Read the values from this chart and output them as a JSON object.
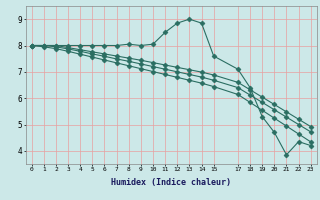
{
  "xlabel": "Humidex (Indice chaleur)",
  "bg_color": "#cce8e8",
  "line_color": "#2a6e62",
  "grid_color": "#e8a0a0",
  "xlim": [
    -0.5,
    23.5
  ],
  "ylim": [
    3.5,
    9.5
  ],
  "yticks": [
    4,
    5,
    6,
    7,
    8,
    9
  ],
  "xticks": [
    0,
    1,
    2,
    3,
    4,
    5,
    6,
    7,
    8,
    9,
    10,
    11,
    12,
    13,
    14,
    15,
    17,
    18,
    19,
    20,
    21,
    22,
    23
  ],
  "line1_x": [
    0,
    1,
    2,
    3,
    4,
    5,
    6,
    7,
    8,
    9,
    10,
    11,
    12,
    13,
    14,
    15,
    17,
    18,
    19,
    20,
    21,
    22,
    23
  ],
  "line1_y": [
    8.0,
    8.0,
    8.0,
    8.0,
    8.0,
    8.0,
    8.0,
    8.0,
    8.05,
    8.0,
    8.05,
    8.5,
    8.85,
    9.0,
    8.85,
    7.6,
    7.1,
    6.4,
    5.3,
    4.7,
    3.85,
    4.35,
    4.2
  ],
  "line2_x": [
    0,
    1,
    2,
    3,
    4,
    5,
    6,
    7,
    8,
    9,
    10,
    11,
    12,
    13,
    14,
    15,
    17,
    18,
    19,
    20,
    21,
    22,
    23
  ],
  "line2_y": [
    8.0,
    8.0,
    8.0,
    7.92,
    7.84,
    7.76,
    7.68,
    7.6,
    7.52,
    7.44,
    7.35,
    7.26,
    7.17,
    7.08,
    6.99,
    6.88,
    6.6,
    6.32,
    6.04,
    5.76,
    5.48,
    5.2,
    4.92
  ],
  "line3_x": [
    0,
    1,
    2,
    3,
    4,
    5,
    6,
    7,
    8,
    9,
    10,
    11,
    12,
    13,
    14,
    15,
    17,
    18,
    19,
    20,
    21,
    22,
    23
  ],
  "line3_y": [
    8.0,
    8.0,
    7.95,
    7.87,
    7.78,
    7.68,
    7.59,
    7.49,
    7.4,
    7.3,
    7.2,
    7.1,
    7.0,
    6.9,
    6.8,
    6.68,
    6.4,
    6.12,
    5.84,
    5.56,
    5.28,
    5.0,
    4.72
  ],
  "line4_x": [
    0,
    1,
    2,
    3,
    4,
    5,
    6,
    7,
    8,
    9,
    10,
    11,
    12,
    13,
    14,
    15,
    17,
    18,
    19,
    20,
    21,
    22,
    23
  ],
  "line4_y": [
    8.0,
    7.95,
    7.88,
    7.78,
    7.67,
    7.56,
    7.45,
    7.34,
    7.23,
    7.12,
    7.01,
    6.9,
    6.79,
    6.68,
    6.57,
    6.44,
    6.14,
    5.84,
    5.54,
    5.24,
    4.94,
    4.64,
    4.34
  ]
}
